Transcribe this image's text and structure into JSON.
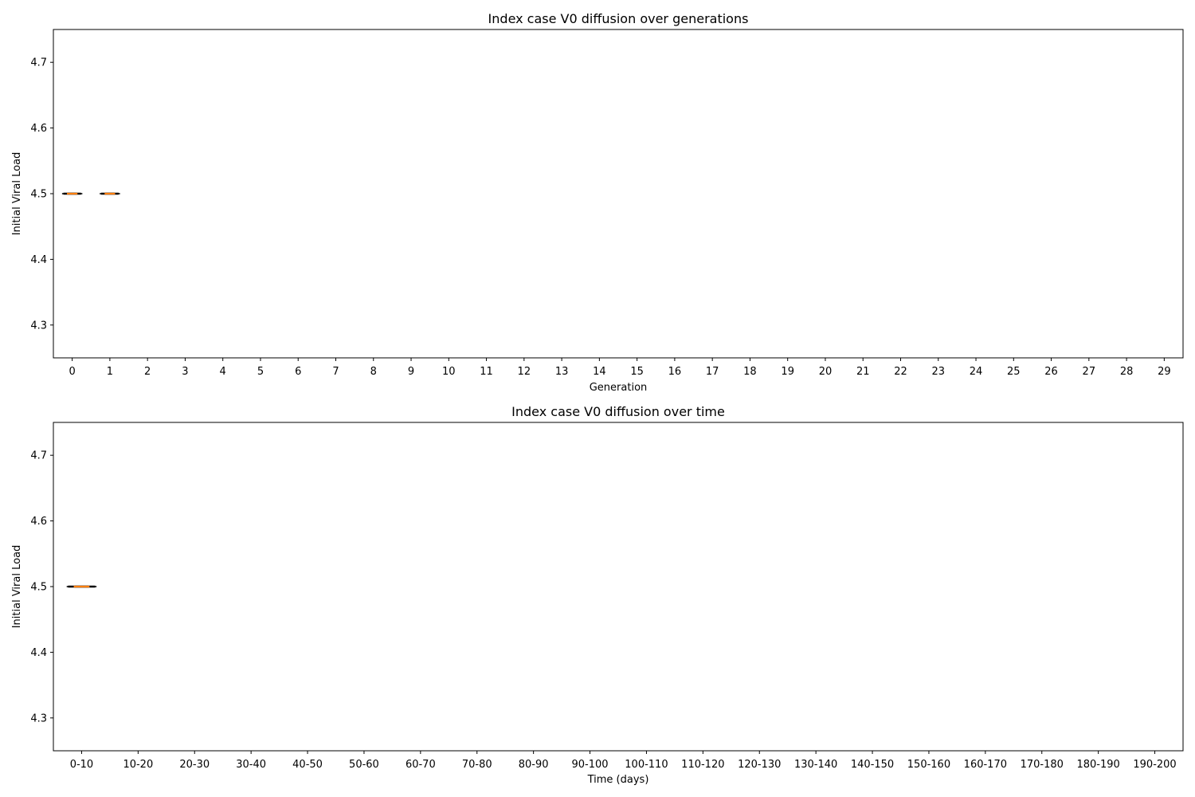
{
  "chart_data": [
    {
      "type": "box",
      "title": "Index case V0 diffusion over generations",
      "xlabel": "Generation",
      "ylabel": "Initial Viral Load",
      "categories": [
        "0",
        "1",
        "2",
        "3",
        "4",
        "5",
        "6",
        "7",
        "8",
        "9",
        "10",
        "11",
        "12",
        "13",
        "14",
        "15",
        "16",
        "17",
        "18",
        "19",
        "20",
        "21",
        "22",
        "23",
        "24",
        "25",
        "26",
        "27",
        "28",
        "29"
      ],
      "ylim": [
        4.25,
        4.75
      ],
      "yticks": [
        "4.3",
        "4.4",
        "4.5",
        "4.6",
        "4.7"
      ],
      "grid": false,
      "boxes": [
        {
          "category": "0",
          "min": 4.5,
          "q1": 4.5,
          "median": 4.5,
          "q3": 4.5,
          "max": 4.5
        },
        {
          "category": "1",
          "min": 4.5,
          "q1": 4.5,
          "median": 4.5,
          "q3": 4.5,
          "max": 4.5
        }
      ]
    },
    {
      "type": "box",
      "title": "Index case V0 diffusion over time",
      "xlabel": "Time (days)",
      "ylabel": "Initial Viral Load",
      "categories": [
        "0-10",
        "10-20",
        "20-30",
        "30-40",
        "40-50",
        "50-60",
        "60-70",
        "70-80",
        "80-90",
        "90-100",
        "100-110",
        "110-120",
        "120-130",
        "130-140",
        "140-150",
        "150-160",
        "160-170",
        "170-180",
        "180-190",
        "190-200"
      ],
      "ylim": [
        4.25,
        4.75
      ],
      "yticks": [
        "4.3",
        "4.4",
        "4.5",
        "4.6",
        "4.7"
      ],
      "grid": false,
      "boxes": [
        {
          "category": "0-10",
          "min": 4.5,
          "q1": 4.5,
          "median": 4.5,
          "q3": 4.5,
          "max": 4.5
        }
      ]
    }
  ],
  "colors": {
    "box_edge": "#000000",
    "median_line": "#ff7f0e",
    "axes": "#000000",
    "background": "#ffffff"
  }
}
